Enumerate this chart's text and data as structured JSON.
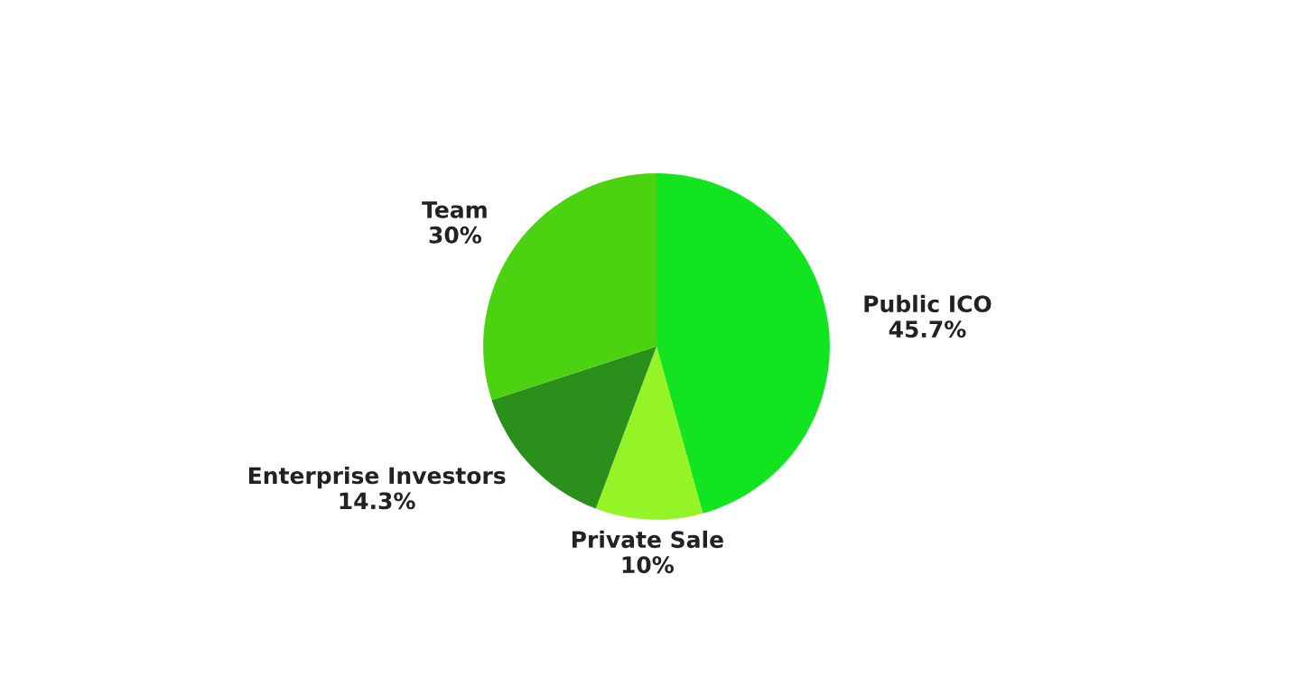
{
  "chart_data": {
    "type": "pie",
    "categories": [
      "Public ICO",
      "Private Sale",
      "Enterprise Investors",
      "Team"
    ],
    "values": [
      45.7,
      10,
      14.3,
      30
    ],
    "colors": [
      "#12e51f",
      "#94f425",
      "#2a8f1b",
      "#4bd312"
    ],
    "value_labels": [
      "45.7%",
      "10%",
      "14.3%",
      "30%"
    ]
  }
}
